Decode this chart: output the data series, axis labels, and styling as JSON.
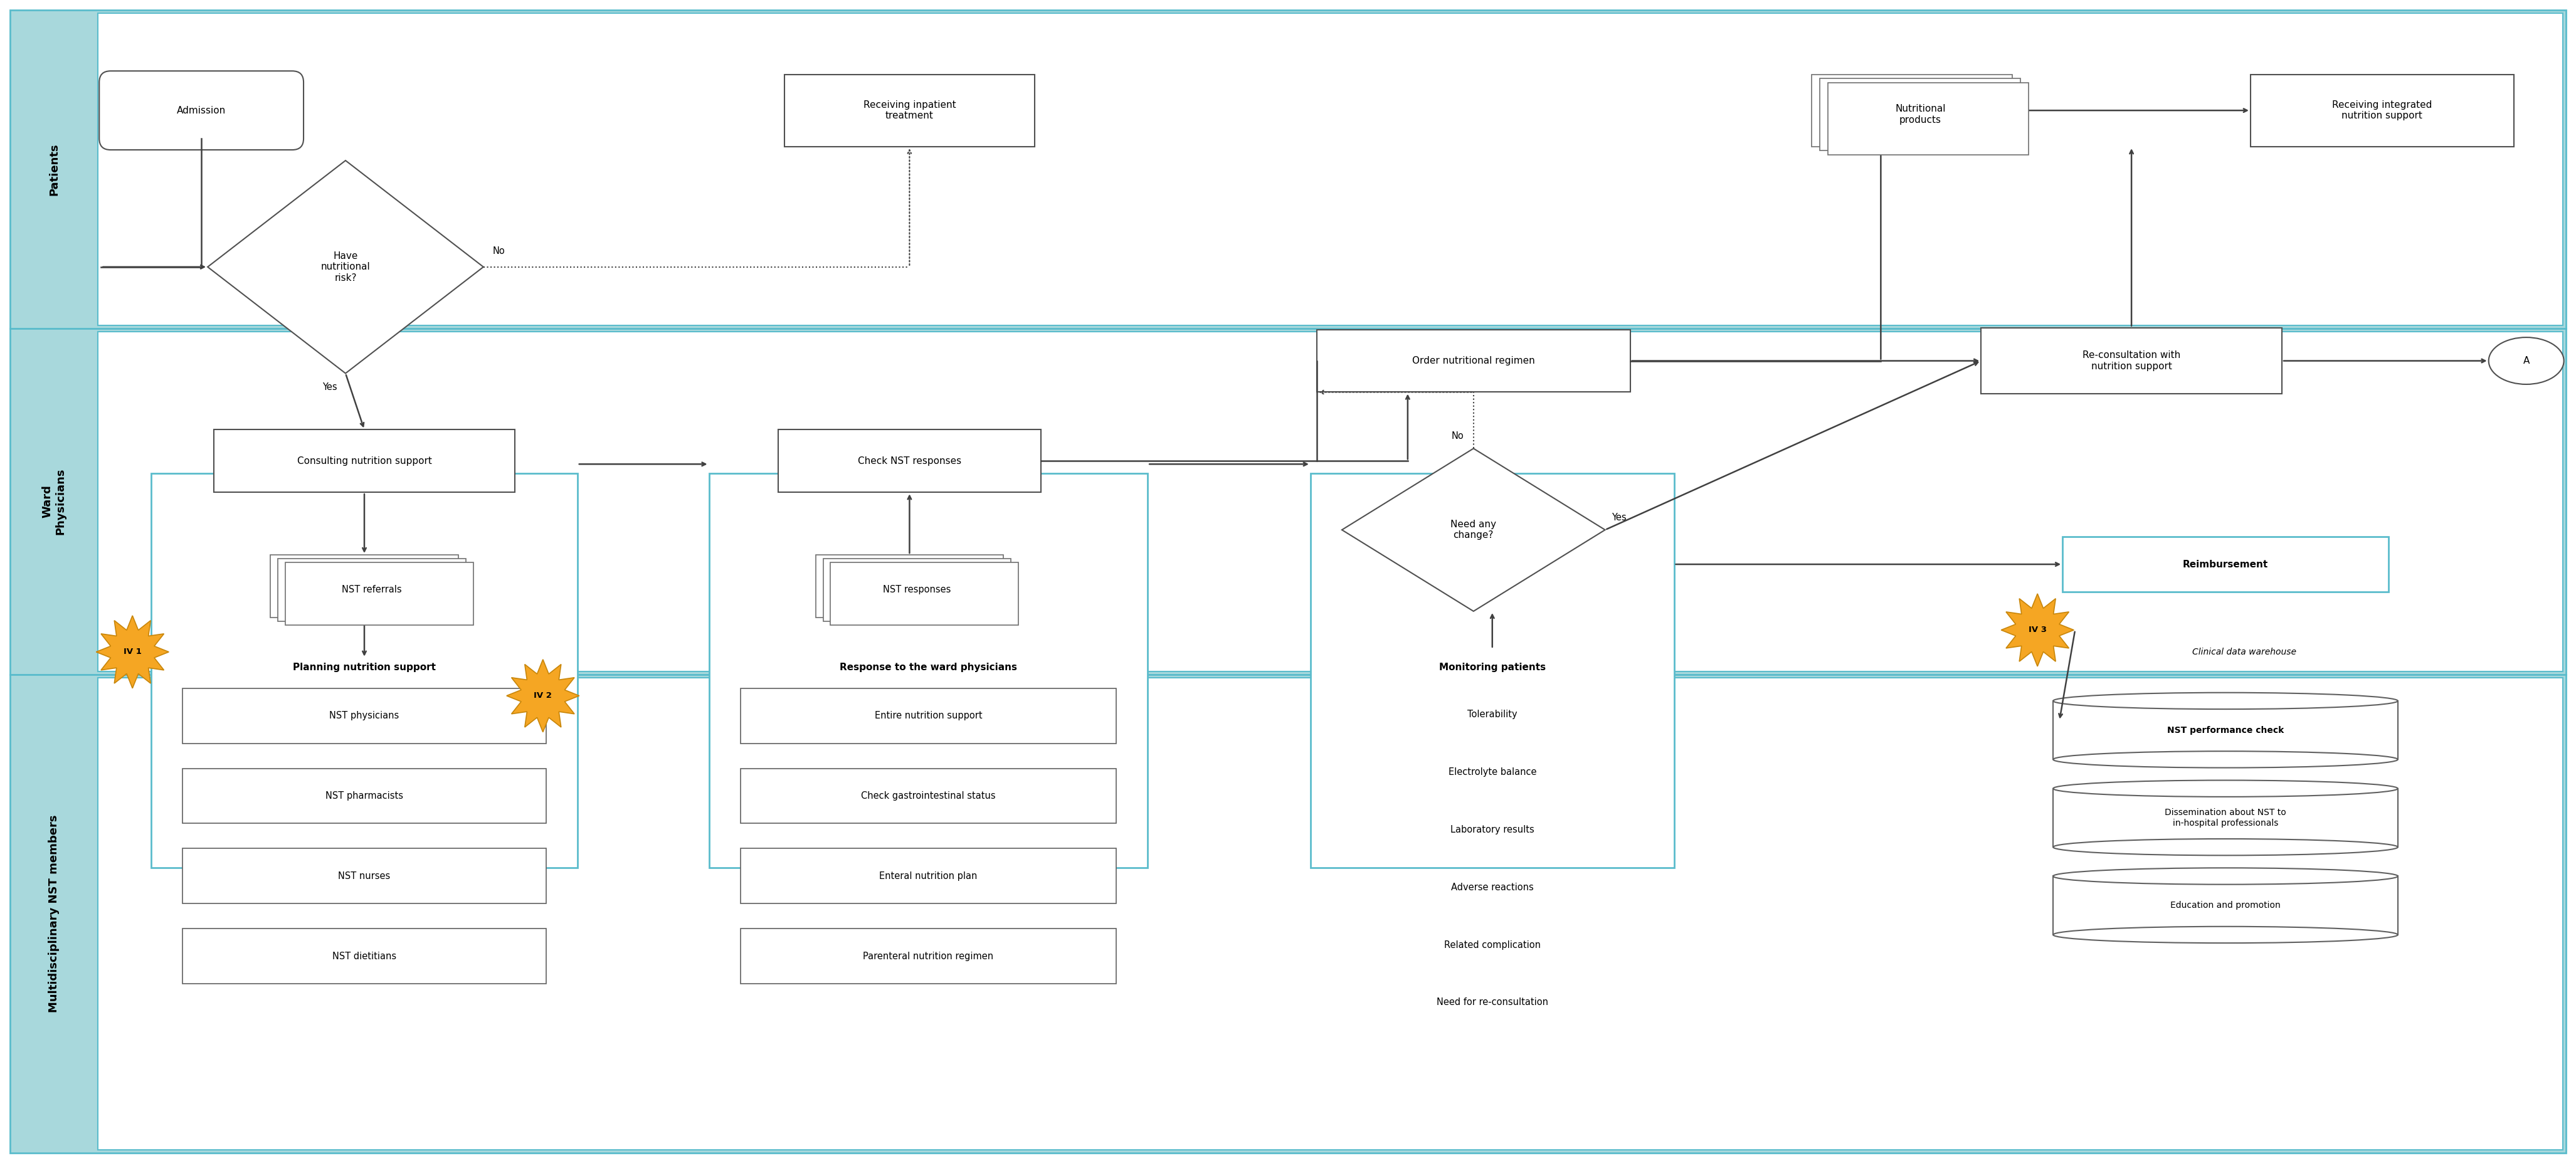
{
  "fig_width": 41.08,
  "fig_height": 18.55,
  "bg_color": "#ffffff",
  "lane_color": "#a8d8dc",
  "lane_border_color": "#5bbccc",
  "teal_box_edge": "#5bbccc",
  "arrow_color": "#404040",
  "star_color": "#f5a623",
  "lane_labels": [
    "Patients",
    "Ward\nPhysicians",
    "Multidisciplinary NST members"
  ],
  "plan_items": [
    "NST physicians",
    "NST pharmacists",
    "NST nurses",
    "NST dietitians"
  ],
  "resp_items": [
    "Entire nutrition support",
    "Check gastrointestinal status",
    "Enteral nutrition plan",
    "Parenteral nutrition regimen"
  ],
  "mon_items": [
    "Tolerability",
    "Electrolyte balance",
    "Laboratory results",
    "Adverse reactions",
    "Related complication",
    "Need for re-consultation"
  ],
  "db_items": [
    "NST performance check",
    "Dissemination about NST to\nin-hospital professionals",
    "Education and promotion"
  ]
}
